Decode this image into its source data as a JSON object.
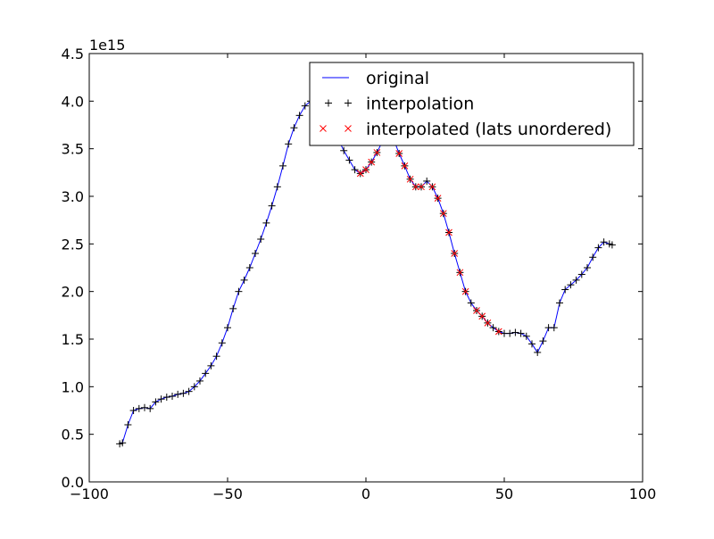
{
  "chart_data": {
    "type": "line",
    "title": "",
    "xlabel": "",
    "ylabel": "",
    "y_offset_label": "1e15",
    "xlim": [
      -100,
      100
    ],
    "ylim": [
      0,
      4.5
    ],
    "x_ticks": [
      -100,
      -50,
      0,
      50,
      100
    ],
    "x_tick_labels": [
      "−100",
      "−50",
      "0",
      "50",
      "100"
    ],
    "y_ticks": [
      0,
      0.5,
      1,
      1.5,
      2,
      2.5,
      3,
      3.5,
      4,
      4.5
    ],
    "y_tick_labels": [
      "0.0",
      "0.5",
      "1.0",
      "1.5",
      "2.0",
      "2.5",
      "3.0",
      "3.5",
      "4.0",
      "4.5"
    ],
    "grid": false,
    "legend_position": "top-right",
    "series": [
      {
        "name": "original",
        "style": "line",
        "color": "#0000ff",
        "points": [
          [
            -89,
            0.4
          ],
          [
            -88,
            0.41
          ],
          [
            -86,
            0.6
          ],
          [
            -84,
            0.75
          ],
          [
            -82,
            0.77
          ],
          [
            -80,
            0.78
          ],
          [
            -78,
            0.77
          ],
          [
            -76,
            0.84
          ],
          [
            -74,
            0.87
          ],
          [
            -72,
            0.89
          ],
          [
            -70,
            0.9
          ],
          [
            -68,
            0.92
          ],
          [
            -66,
            0.93
          ],
          [
            -64,
            0.95
          ],
          [
            -62,
            1.0
          ],
          [
            -60,
            1.06
          ],
          [
            -58,
            1.14
          ],
          [
            -56,
            1.22
          ],
          [
            -54,
            1.32
          ],
          [
            -52,
            1.46
          ],
          [
            -50,
            1.62
          ],
          [
            -48,
            1.82
          ],
          [
            -46,
            2.0
          ],
          [
            -44,
            2.12
          ],
          [
            -42,
            2.25
          ],
          [
            -40,
            2.4
          ],
          [
            -38,
            2.55
          ],
          [
            -36,
            2.72
          ],
          [
            -34,
            2.9
          ],
          [
            -32,
            3.1
          ],
          [
            -30,
            3.32
          ],
          [
            -28,
            3.55
          ],
          [
            -26,
            3.72
          ],
          [
            -24,
            3.85
          ],
          [
            -22,
            3.95
          ],
          [
            -20,
            4.0
          ],
          [
            -18,
            4.02
          ],
          [
            -16,
            3.95
          ],
          [
            -14,
            3.85
          ],
          [
            -12,
            3.72
          ],
          [
            -10,
            3.6
          ],
          [
            -8,
            3.48
          ],
          [
            -6,
            3.38
          ],
          [
            -4,
            3.28
          ],
          [
            -2,
            3.24
          ],
          [
            0,
            3.28
          ],
          [
            2,
            3.36
          ],
          [
            4,
            3.46
          ],
          [
            6,
            3.58
          ],
          [
            8,
            3.66
          ],
          [
            10,
            3.6
          ],
          [
            12,
            3.45
          ],
          [
            14,
            3.32
          ],
          [
            16,
            3.18
          ],
          [
            18,
            3.1
          ],
          [
            20,
            3.1
          ],
          [
            22,
            3.16
          ],
          [
            24,
            3.1
          ],
          [
            26,
            2.98
          ],
          [
            28,
            2.82
          ],
          [
            30,
            2.62
          ],
          [
            32,
            2.4
          ],
          [
            34,
            2.2
          ],
          [
            36,
            2.0
          ],
          [
            38,
            1.88
          ],
          [
            40,
            1.8
          ],
          [
            42,
            1.74
          ],
          [
            44,
            1.67
          ],
          [
            46,
            1.62
          ],
          [
            48,
            1.58
          ],
          [
            50,
            1.56
          ],
          [
            52,
            1.56
          ],
          [
            54,
            1.57
          ],
          [
            56,
            1.56
          ],
          [
            58,
            1.53
          ],
          [
            60,
            1.45
          ],
          [
            62,
            1.36
          ],
          [
            64,
            1.48
          ],
          [
            66,
            1.62
          ],
          [
            68,
            1.62
          ],
          [
            70,
            1.88
          ],
          [
            72,
            2.02
          ],
          [
            74,
            2.07
          ],
          [
            76,
            2.12
          ],
          [
            78,
            2.18
          ],
          [
            80,
            2.25
          ],
          [
            82,
            2.36
          ],
          [
            84,
            2.46
          ],
          [
            86,
            2.52
          ],
          [
            88,
            2.5
          ],
          [
            89,
            2.49
          ]
        ]
      },
      {
        "name": "interpolation",
        "style": "marker",
        "marker": "plus",
        "color": "#000000",
        "points": "same_as_original"
      },
      {
        "name": "interpolated (lats unordered)",
        "style": "marker",
        "marker": "x",
        "color": "#ff0000",
        "points": [
          [
            -2,
            3.24
          ],
          [
            0,
            3.28
          ],
          [
            2,
            3.36
          ],
          [
            4,
            3.46
          ],
          [
            10,
            3.6
          ],
          [
            12,
            3.45
          ],
          [
            14,
            3.32
          ],
          [
            16,
            3.18
          ],
          [
            18,
            3.1
          ],
          [
            20,
            3.1
          ],
          [
            24,
            3.1
          ],
          [
            26,
            2.98
          ],
          [
            28,
            2.82
          ],
          [
            30,
            2.62
          ],
          [
            32,
            2.4
          ],
          [
            34,
            2.2
          ],
          [
            36,
            2.0
          ],
          [
            40,
            1.8
          ],
          [
            42,
            1.74
          ],
          [
            44,
            1.67
          ],
          [
            48,
            1.58
          ]
        ]
      }
    ]
  }
}
